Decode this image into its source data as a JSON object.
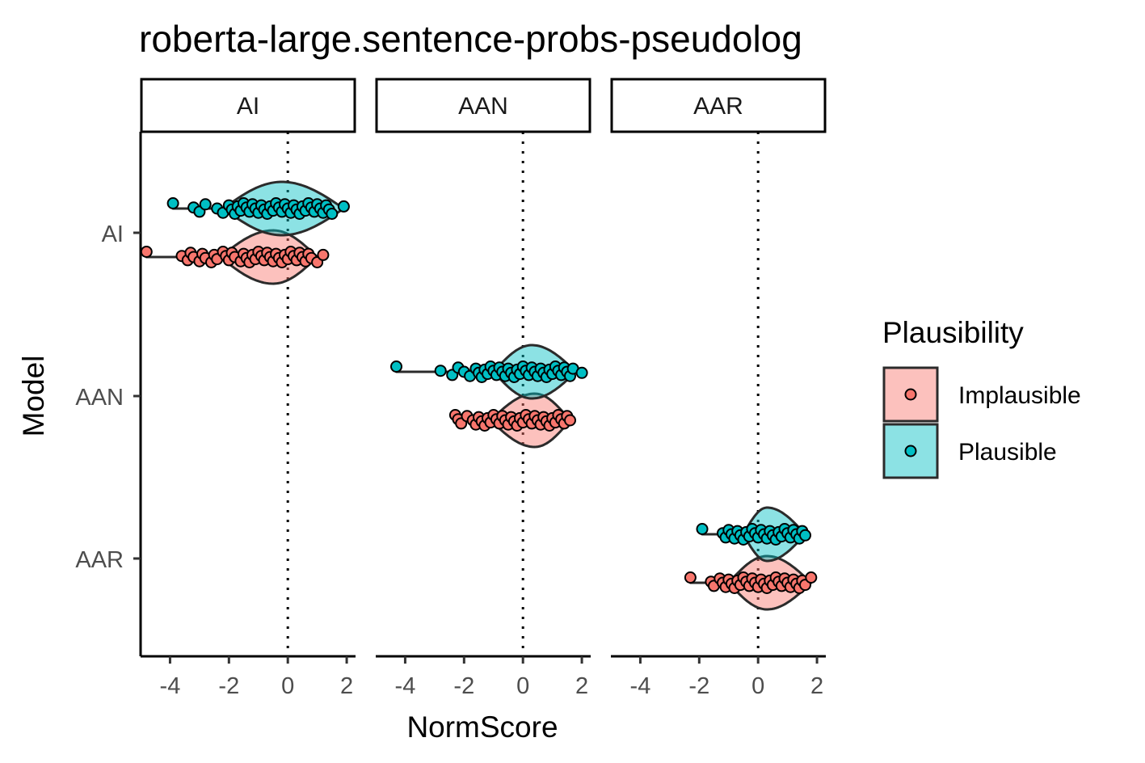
{
  "chart_data": {
    "type": "violin",
    "title": "roberta-large.sentence-probs-pseudolog",
    "xlabel": "NormScore",
    "ylabel": "Model",
    "xlim": [
      -5,
      2.3
    ],
    "x_ticks": [
      -4,
      -2,
      0,
      2
    ],
    "x_tick_labels": [
      "-4",
      "-2",
      "0",
      "2"
    ],
    "reference_line": {
      "x": 0,
      "style": "dotted"
    },
    "panels": [
      "AI",
      "AAN",
      "AAR"
    ],
    "y_categories": [
      "AI",
      "AAN",
      "AAR"
    ],
    "legend": {
      "title": "Plausibility",
      "placement": "right",
      "entries": [
        {
          "name": "Implausible",
          "color": "#F8766D"
        },
        {
          "name": "Plausible",
          "color": "#00BFC4"
        }
      ]
    },
    "groups": [
      {
        "panel": "AI",
        "model": "AI",
        "plausibility": "Implausible",
        "min": -4.8,
        "max": 1.2,
        "median": -0.5,
        "violin_extent": [
          -2.3,
          1.0
        ],
        "points": [
          -4.8,
          -3.6,
          -3.4,
          -3.3,
          -3.2,
          -3.0,
          -2.9,
          -2.8,
          -2.6,
          -2.5,
          -2.4,
          -2.2,
          -2.1,
          -2.0,
          -1.9,
          -1.8,
          -1.6,
          -1.5,
          -1.4,
          -1.3,
          -1.2,
          -1.1,
          -1.0,
          -0.9,
          -0.8,
          -0.7,
          -0.6,
          -0.5,
          -0.4,
          -0.3,
          -0.2,
          -0.1,
          0.0,
          0.1,
          0.2,
          0.3,
          0.4,
          0.5,
          0.6,
          0.7,
          0.8,
          1.0,
          1.2
        ]
      },
      {
        "panel": "AI",
        "model": "AI",
        "plausibility": "Plausible",
        "min": -3.9,
        "max": 1.9,
        "median": -0.2,
        "violin_extent": [
          -2.2,
          1.9
        ],
        "points": [
          -3.9,
          -3.2,
          -3.0,
          -2.8,
          -2.4,
          -2.2,
          -2.0,
          -1.9,
          -1.8,
          -1.7,
          -1.6,
          -1.5,
          -1.4,
          -1.3,
          -1.2,
          -1.1,
          -1.0,
          -0.9,
          -0.8,
          -0.7,
          -0.6,
          -0.5,
          -0.4,
          -0.3,
          -0.2,
          -0.1,
          0.0,
          0.1,
          0.2,
          0.3,
          0.4,
          0.5,
          0.6,
          0.7,
          0.8,
          0.9,
          1.0,
          1.1,
          1.2,
          1.3,
          1.4,
          1.5,
          1.9
        ]
      },
      {
        "panel": "AAN",
        "model": "AAN",
        "plausibility": "Implausible",
        "min": -2.3,
        "max": 1.6,
        "median": 0.4,
        "violin_extent": [
          -1.1,
          1.6
        ],
        "points": [
          -2.3,
          -2.2,
          -2.1,
          -1.9,
          -1.7,
          -1.6,
          -1.5,
          -1.4,
          -1.3,
          -1.2,
          -1.1,
          -1.0,
          -0.9,
          -0.8,
          -0.7,
          -0.6,
          -0.5,
          -0.4,
          -0.3,
          -0.2,
          -0.1,
          0.0,
          0.1,
          0.2,
          0.3,
          0.4,
          0.5,
          0.6,
          0.7,
          0.8,
          0.9,
          1.0,
          1.1,
          1.2,
          1.3,
          1.4,
          1.5,
          1.6
        ]
      },
      {
        "panel": "AAN",
        "model": "AAN",
        "plausibility": "Plausible",
        "min": -4.3,
        "max": 2.0,
        "median": 0.3,
        "violin_extent": [
          -1.0,
          1.8
        ],
        "points": [
          -4.3,
          -2.8,
          -2.4,
          -2.2,
          -2.0,
          -1.8,
          -1.6,
          -1.5,
          -1.4,
          -1.3,
          -1.2,
          -1.1,
          -1.0,
          -0.9,
          -0.8,
          -0.7,
          -0.6,
          -0.5,
          -0.4,
          -0.3,
          -0.2,
          -0.1,
          0.0,
          0.1,
          0.2,
          0.3,
          0.4,
          0.5,
          0.6,
          0.7,
          0.8,
          0.9,
          1.0,
          1.1,
          1.2,
          1.3,
          1.4,
          1.5,
          1.6,
          1.7,
          2.0
        ]
      },
      {
        "panel": "AAR",
        "model": "AAR",
        "plausibility": "Implausible",
        "min": -2.3,
        "max": 1.8,
        "median": 0.3,
        "violin_extent": [
          -1.0,
          1.8
        ],
        "points": [
          -2.3,
          -1.6,
          -1.5,
          -1.3,
          -1.2,
          -1.1,
          -1.0,
          -0.9,
          -0.8,
          -0.7,
          -0.6,
          -0.5,
          -0.4,
          -0.3,
          -0.2,
          -0.1,
          0.0,
          0.1,
          0.2,
          0.3,
          0.4,
          0.5,
          0.6,
          0.7,
          0.8,
          0.9,
          1.0,
          1.1,
          1.2,
          1.3,
          1.4,
          1.5,
          1.6,
          1.8
        ]
      },
      {
        "panel": "AAR",
        "model": "AAR",
        "plausibility": "Plausible",
        "min": -1.9,
        "max": 1.6,
        "median": 0.3,
        "violin_extent": [
          -0.5,
          1.6
        ],
        "points": [
          -1.9,
          -1.2,
          -1.1,
          -1.0,
          -0.9,
          -0.8,
          -0.7,
          -0.6,
          -0.5,
          -0.4,
          -0.3,
          -0.2,
          -0.1,
          0.0,
          0.1,
          0.2,
          0.3,
          0.4,
          0.5,
          0.6,
          0.7,
          0.8,
          0.9,
          1.0,
          1.1,
          1.2,
          1.3,
          1.4,
          1.5,
          1.6
        ]
      }
    ]
  }
}
